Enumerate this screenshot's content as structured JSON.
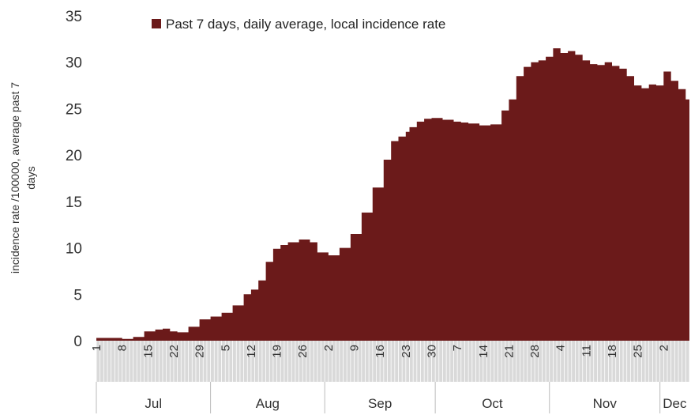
{
  "chart_data": {
    "type": "area",
    "legend": {
      "label": "Past 7 days, daily average, local incidence rate",
      "position": "top"
    },
    "ylabel": "incidence rate /100000, average past 7 days",
    "ylim": [
      0,
      35
    ],
    "yticks": [
      0,
      5,
      10,
      15,
      20,
      25,
      30,
      35
    ],
    "grid": false,
    "colors": {
      "area": "#6b1a1a",
      "date_band": "#d9d9d9",
      "month_separator": "#bbbbbb"
    },
    "date_ticks": [
      "1",
      "8",
      "15",
      "22",
      "29",
      "5",
      "12",
      "19",
      "26",
      "2",
      "9",
      "16",
      "23",
      "30",
      "7",
      "14",
      "21",
      "28",
      "4",
      "11",
      "18",
      "25",
      "2"
    ],
    "months": [
      {
        "name": "Jul",
        "start_day": 0,
        "end_day": 31
      },
      {
        "name": "Aug",
        "start_day": 31,
        "end_day": 62
      },
      {
        "name": "Sep",
        "start_day": 62,
        "end_day": 92
      },
      {
        "name": "Oct",
        "start_day": 92,
        "end_day": 123
      },
      {
        "name": "Nov",
        "start_day": 123,
        "end_day": 153
      },
      {
        "name": "Dec",
        "start_day": 153,
        "end_day": 161
      }
    ],
    "series": [
      {
        "x": [
          0,
          3,
          7,
          10,
          13,
          16,
          18,
          20,
          22,
          25,
          28,
          31,
          34,
          37,
          40,
          42,
          44,
          46,
          48,
          50,
          52,
          55,
          58,
          60,
          63,
          66,
          69,
          72,
          75,
          78,
          80,
          82,
          84,
          85,
          87,
          89,
          91,
          94,
          97,
          99,
          101,
          104,
          107,
          110,
          112,
          114,
          116,
          118,
          120,
          122,
          124,
          126,
          128,
          130,
          132,
          134,
          136,
          138,
          140,
          142,
          144,
          146,
          148,
          150,
          152,
          154,
          156,
          158,
          160
        ],
        "values": [
          0.3,
          0.3,
          0.2,
          0.4,
          1.0,
          1.2,
          1.3,
          1.0,
          0.9,
          1.5,
          2.3,
          2.6,
          3.0,
          3.8,
          5.0,
          5.5,
          6.5,
          8.5,
          9.9,
          10.3,
          10.6,
          10.9,
          10.6,
          9.5,
          9.2,
          10.0,
          11.5,
          13.8,
          16.5,
          19.5,
          21.5,
          22.0,
          22.5,
          23.0,
          23.6,
          23.9,
          24.0,
          23.8,
          23.6,
          23.5,
          23.4,
          23.2,
          23.3,
          24.8,
          26.0,
          28.5,
          29.5,
          30.0,
          30.2,
          30.6,
          31.5,
          31.0,
          31.2,
          30.8,
          30.2,
          29.8,
          29.7,
          30.0,
          29.6,
          29.3,
          28.5,
          27.5,
          27.2,
          27.6,
          27.5,
          29.0,
          28.0,
          27.1,
          26.0
        ]
      }
    ]
  }
}
